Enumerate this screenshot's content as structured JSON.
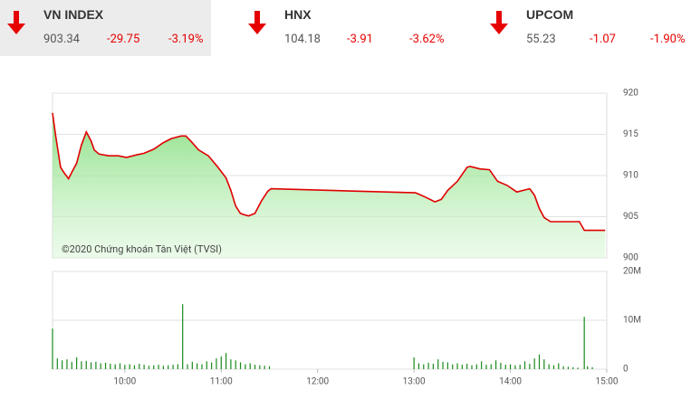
{
  "indices": [
    {
      "name": "VN INDEX",
      "price": "903.34",
      "change": "-29.75",
      "percent": "-3.19%"
    },
    {
      "name": "HNX",
      "price": "104.18",
      "change": "-3.91",
      "percent": "-3.62%"
    },
    {
      "name": "UPCOM",
      "price": "55.23",
      "change": "-1.07",
      "percent": "-1.90%"
    }
  ],
  "chart_data": [
    {
      "type": "line",
      "annotation": "©2020 Chứng khoán Tân Việt (TVSI)",
      "color": "#e00000",
      "fill": "#8fe38a",
      "ylim": [
        900,
        920
      ],
      "yticks": [
        900,
        905,
        910,
        915,
        920
      ],
      "xlim": [
        555,
        900
      ],
      "grid": true,
      "series": [
        {
          "name": null,
          "color": "#e00000",
          "x": [
            555,
            557,
            560,
            562,
            565,
            567,
            570,
            573,
            576,
            579,
            581,
            584,
            590,
            596,
            601,
            607,
            612,
            618,
            624,
            629,
            635,
            638,
            641,
            646,
            652,
            658,
            663,
            666,
            669,
            672,
            675,
            677,
            681,
            685,
            689,
            691,
            781,
            787,
            793,
            797,
            801,
            807,
            813,
            815,
            821,
            827,
            832,
            838,
            844,
            848,
            852,
            855,
            858,
            861,
            865,
            872,
            883,
            886,
            899
          ],
          "values": [
            917.6,
            914.8,
            911,
            910.4,
            909.6,
            910.4,
            911.5,
            913.7,
            915.3,
            914.2,
            913.1,
            912.6,
            912.4,
            912.4,
            912.2,
            912.5,
            912.7,
            913.2,
            914,
            914.5,
            914.8,
            914.8,
            914.2,
            913.1,
            912.4,
            911,
            909.7,
            908.2,
            906.3,
            905.4,
            905.2,
            905.1,
            905.4,
            906.9,
            908.1,
            908.4,
            907.9,
            907.4,
            906.8,
            907.1,
            908.2,
            909.3,
            911,
            911.1,
            910.8,
            910.7,
            909.3,
            908.8,
            908,
            908.2,
            908.4,
            907.6,
            906,
            904.9,
            904.4,
            904.4,
            904.4,
            903.34,
            903.34
          ]
        }
      ]
    },
    {
      "type": "bar",
      "color": "#1a8a1a",
      "ylim": [
        0,
        20000000
      ],
      "yticks": [
        0,
        {
          "value": 10000000,
          "label": "10M"
        },
        {
          "value": 20000000,
          "label": "20M"
        }
      ],
      "xlim": [
        555,
        900
      ],
      "xticks": [
        {
          "value": 600,
          "label": "10:00"
        },
        {
          "value": 660,
          "label": "11:00"
        },
        {
          "value": 720,
          "label": "12:00"
        },
        {
          "value": 780,
          "label": "13:00"
        },
        {
          "value": 840,
          "label": "14:00"
        },
        {
          "value": 900,
          "label": "15:00"
        }
      ],
      "x": [
        555,
        558,
        561,
        564,
        567,
        570,
        573,
        576,
        579,
        582,
        585,
        588,
        591,
        594,
        597,
        600,
        603,
        606,
        609,
        612,
        615,
        618,
        621,
        624,
        627,
        630,
        633,
        636,
        639,
        642,
        645,
        648,
        651,
        654,
        657,
        660,
        663,
        666,
        669,
        672,
        675,
        678,
        681,
        684,
        687,
        690,
        780,
        783,
        786,
        789,
        792,
        795,
        798,
        801,
        804,
        807,
        810,
        813,
        816,
        819,
        822,
        825,
        828,
        831,
        834,
        837,
        840,
        843,
        846,
        849,
        852,
        855,
        858,
        861,
        864,
        867,
        870,
        873,
        876,
        879,
        882,
        886,
        888,
        891
      ],
      "values": [
        8300000,
        2200000,
        1800000,
        2000000,
        1500000,
        2400000,
        1600000,
        1700000,
        1400000,
        1500000,
        1200000,
        1300000,
        1100000,
        1000000,
        1200000,
        900000,
        1000000,
        800000,
        1100000,
        900000,
        700000,
        800000,
        900000,
        700000,
        800000,
        900000,
        1000000,
        13300000,
        1000000,
        1500000,
        1200000,
        1000000,
        1600000,
        1400000,
        2200000,
        2600000,
        3300000,
        2000000,
        1800000,
        1400000,
        1000000,
        1200000,
        900000,
        800000,
        700000,
        600000,
        2400000,
        1200000,
        1000000,
        1300000,
        1100000,
        2000000,
        1500000,
        1400000,
        1000000,
        1200000,
        900000,
        1100000,
        800000,
        1000000,
        1600000,
        900000,
        1000000,
        1800000,
        1300000,
        900000,
        1000000,
        800000,
        900000,
        1600000,
        1100000,
        2200000,
        3000000,
        2000000,
        1000000,
        800000,
        1200000,
        600000,
        500000,
        400000,
        300000,
        10700000,
        600000,
        400000
      ]
    }
  ]
}
